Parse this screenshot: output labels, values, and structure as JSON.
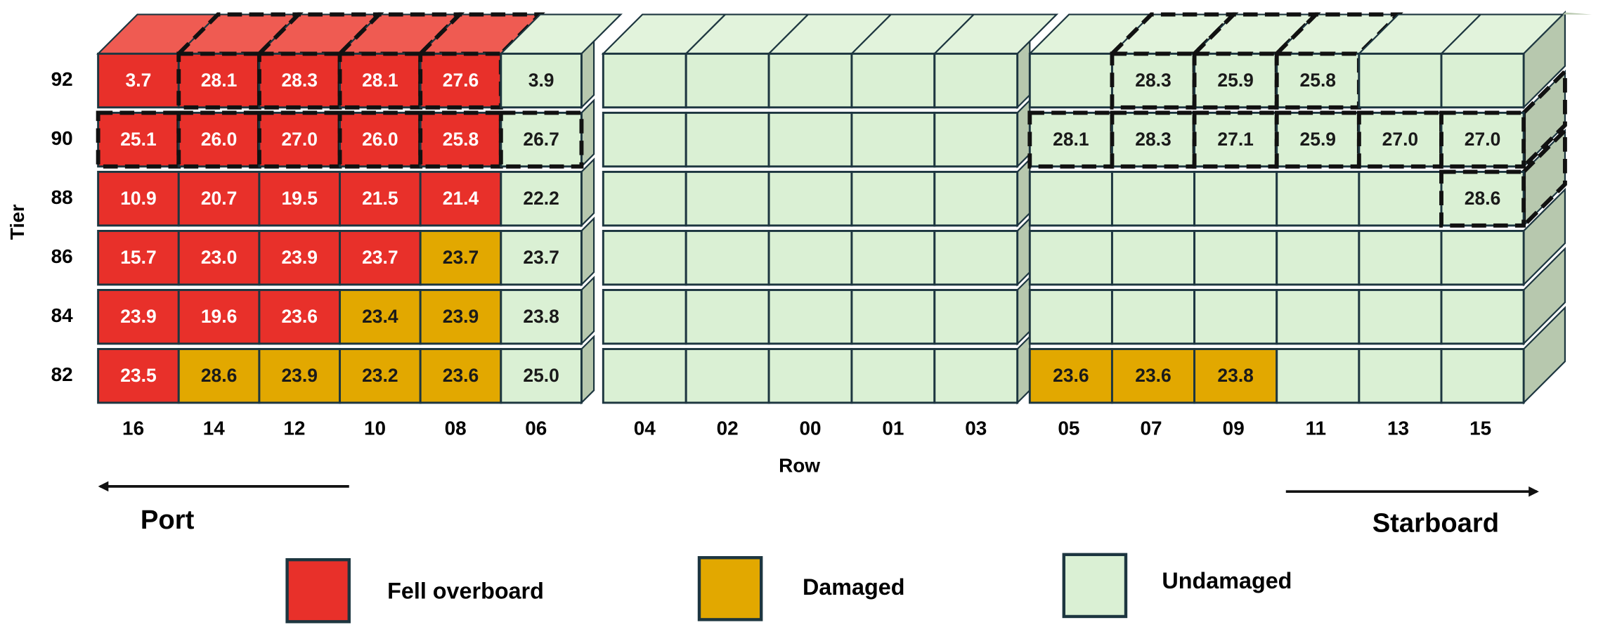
{
  "axis": {
    "y_title": "Tier",
    "x_title": "Row"
  },
  "directions": {
    "left": "Port",
    "right": "Starboard"
  },
  "legend": [
    {
      "label": "Fell overboard",
      "color": "#e8302a",
      "top_color": "#ef5b52",
      "text_color": "#ffffff"
    },
    {
      "label": "Damaged",
      "color": "#e2a800",
      "top_color": "#ecbd38",
      "text_color": "#1a1a1a"
    },
    {
      "label": "Undamaged",
      "color": "#daf0d4",
      "top_color": "#e2f3dc",
      "text_color": "#1a1a1a"
    }
  ],
  "rows": [
    "16",
    "14",
    "12",
    "10",
    "08",
    "06",
    "04",
    "02",
    "00",
    "01",
    "03",
    "05",
    "07",
    "09",
    "11",
    "13",
    "15"
  ],
  "tiers": [
    {
      "label": "92",
      "cells": [
        {
          "status": 0,
          "label": "3.7"
        },
        {
          "status": 0,
          "label": "28.1",
          "dashed": true
        },
        {
          "status": 0,
          "label": "28.3",
          "dashed": true
        },
        {
          "status": 0,
          "label": "28.1",
          "dashed": true
        },
        {
          "status": 0,
          "label": "27.6",
          "dashed": true
        },
        {
          "status": 2,
          "label": "3.9"
        },
        {
          "status": 2
        },
        {
          "status": 2
        },
        {
          "status": 2
        },
        {
          "status": 2
        },
        {
          "status": 2
        },
        {
          "status": 2
        },
        {
          "status": 2,
          "label": "28.3",
          "dashed": true
        },
        {
          "status": 2,
          "label": "25.9",
          "dashed": true
        },
        {
          "status": 2,
          "label": "25.8",
          "dashed": true
        },
        {
          "status": 2
        },
        {
          "status": 2
        }
      ]
    },
    {
      "label": "90",
      "cells": [
        {
          "status": 0,
          "label": "25.1",
          "dashed": true
        },
        {
          "status": 0,
          "label": "26.0",
          "dashed": true
        },
        {
          "status": 0,
          "label": "27.0",
          "dashed": true
        },
        {
          "status": 0,
          "label": "26.0",
          "dashed": true
        },
        {
          "status": 0,
          "label": "25.8",
          "dashed": true
        },
        {
          "status": 2,
          "label": "26.7",
          "dashed": true
        },
        {
          "status": 2
        },
        {
          "status": 2
        },
        {
          "status": 2
        },
        {
          "status": 2
        },
        {
          "status": 2
        },
        {
          "status": 2,
          "label": "28.1",
          "dashed": true
        },
        {
          "status": 2,
          "label": "28.3",
          "dashed": true
        },
        {
          "status": 2,
          "label": "27.1",
          "dashed": true
        },
        {
          "status": 2,
          "label": "25.9",
          "dashed": true
        },
        {
          "status": 2,
          "label": "27.0",
          "dashed": true
        },
        {
          "status": 2,
          "label": "27.0",
          "dashed": true
        }
      ]
    },
    {
      "label": "88",
      "cells": [
        {
          "status": 0,
          "label": "10.9"
        },
        {
          "status": 0,
          "label": "20.7"
        },
        {
          "status": 0,
          "label": "19.5"
        },
        {
          "status": 0,
          "label": "21.5"
        },
        {
          "status": 0,
          "label": "21.4"
        },
        {
          "status": 2,
          "label": "22.2"
        },
        {
          "status": 2
        },
        {
          "status": 2
        },
        {
          "status": 2
        },
        {
          "status": 2
        },
        {
          "status": 2
        },
        {
          "status": 2
        },
        {
          "status": 2
        },
        {
          "status": 2
        },
        {
          "status": 2
        },
        {
          "status": 2
        },
        {
          "status": 2,
          "label": "28.6",
          "dashed": true
        }
      ]
    },
    {
      "label": "86",
      "cells": [
        {
          "status": 0,
          "label": "15.7"
        },
        {
          "status": 0,
          "label": "23.0"
        },
        {
          "status": 0,
          "label": "23.9"
        },
        {
          "status": 0,
          "label": "23.7"
        },
        {
          "status": 1,
          "label": "23.7"
        },
        {
          "status": 2,
          "label": "23.7"
        },
        {
          "status": 2
        },
        {
          "status": 2
        },
        {
          "status": 2
        },
        {
          "status": 2
        },
        {
          "status": 2
        },
        {
          "status": 2
        },
        {
          "status": 2
        },
        {
          "status": 2
        },
        {
          "status": 2
        },
        {
          "status": 2
        },
        {
          "status": 2
        }
      ]
    },
    {
      "label": "84",
      "cells": [
        {
          "status": 0,
          "label": "23.9"
        },
        {
          "status": 0,
          "label": "19.6"
        },
        {
          "status": 0,
          "label": "23.6"
        },
        {
          "status": 1,
          "label": "23.4"
        },
        {
          "status": 1,
          "label": "23.9"
        },
        {
          "status": 2,
          "label": "23.8"
        },
        {
          "status": 2
        },
        {
          "status": 2
        },
        {
          "status": 2
        },
        {
          "status": 2
        },
        {
          "status": 2
        },
        {
          "status": 2
        },
        {
          "status": 2
        },
        {
          "status": 2
        },
        {
          "status": 2
        },
        {
          "status": 2
        },
        {
          "status": 2
        }
      ]
    },
    {
      "label": "82",
      "cells": [
        {
          "status": 0,
          "label": "23.5"
        },
        {
          "status": 1,
          "label": "28.6"
        },
        {
          "status": 1,
          "label": "23.9"
        },
        {
          "status": 1,
          "label": "23.2"
        },
        {
          "status": 1,
          "label": "23.6"
        },
        {
          "status": 2,
          "label": "25.0"
        },
        {
          "status": 2
        },
        {
          "status": 2
        },
        {
          "status": 2
        },
        {
          "status": 2
        },
        {
          "status": 2
        },
        {
          "status": 1,
          "label": "23.6"
        },
        {
          "status": 1,
          "label": "23.6"
        },
        {
          "status": 1,
          "label": "23.8"
        },
        {
          "status": 2
        },
        {
          "status": 2
        },
        {
          "status": 2
        }
      ]
    }
  ]
}
